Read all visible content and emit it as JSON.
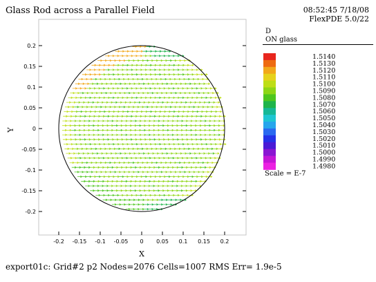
{
  "header": {
    "title": "Glass Rod across a Parallel Field",
    "timestamp": "08:52:45 7/18/08",
    "software": "FlexPDE 5.0/22"
  },
  "legend": {
    "variable": "D",
    "region": "ON glass",
    "scale_label": "Scale = E-7",
    "entries": [
      {
        "value": "1.5140",
        "color": "#e8261e"
      },
      {
        "value": "1.5130",
        "color": "#ee6a10"
      },
      {
        "value": "1.5120",
        "color": "#f2a81a"
      },
      {
        "value": "1.5110",
        "color": "#e6d21c"
      },
      {
        "value": "1.5100",
        "color": "#bede16"
      },
      {
        "value": "1.5090",
        "color": "#8ed616"
      },
      {
        "value": "1.5080",
        "color": "#4ec61e"
      },
      {
        "value": "1.5070",
        "color": "#1eb44a"
      },
      {
        "value": "1.5060",
        "color": "#16b896"
      },
      {
        "value": "1.5050",
        "color": "#1ec6d2"
      },
      {
        "value": "1.5040",
        "color": "#26a6ec"
      },
      {
        "value": "1.5030",
        "color": "#2a6af0"
      },
      {
        "value": "1.5020",
        "color": "#2432e8"
      },
      {
        "value": "1.5010",
        "color": "#4a1ad6"
      },
      {
        "value": "1.5000",
        "color": "#8a16d2"
      },
      {
        "value": "1.4990",
        "color": "#c416d6"
      },
      {
        "value": "1.4980",
        "color": "#ec22e2"
      }
    ]
  },
  "footer": {
    "text": "export01c:  Grid#2  p2  Nodes=2076 Cells=1007 RMS Err= 1.9e-5"
  },
  "chart_data": {
    "type": "vector_field",
    "xlabel": "X",
    "ylabel": "Y",
    "xlim": [
      -0.22,
      0.22
    ],
    "ylim": [
      -0.22,
      0.22
    ],
    "x_ticks": [
      -0.2,
      -0.15,
      -0.1,
      -0.05,
      0,
      0.05,
      0.1,
      0.15,
      0.2
    ],
    "x_tick_labels": [
      "-0.2",
      "-0.15",
      "-0.1",
      "-0.05",
      "0",
      "0.05",
      "0.1",
      "0.15",
      "0.2"
    ],
    "y_ticks": [
      0.2,
      0.15,
      0.1,
      0.05,
      0,
      -0.05,
      -0.1,
      -0.15,
      -0.2
    ],
    "y_tick_labels": [
      "0.2",
      "0.15",
      "0.1",
      "0.05",
      "0",
      "-0.05",
      "-0.1",
      "-0.15",
      "-0.2"
    ],
    "region": {
      "shape": "circle",
      "center": [
        0,
        0
      ],
      "radius": 0.2
    },
    "field": {
      "direction": "+x",
      "grid_spacing": 0.0112,
      "typical_value": 1.5085,
      "units_scale": "E-7"
    }
  }
}
